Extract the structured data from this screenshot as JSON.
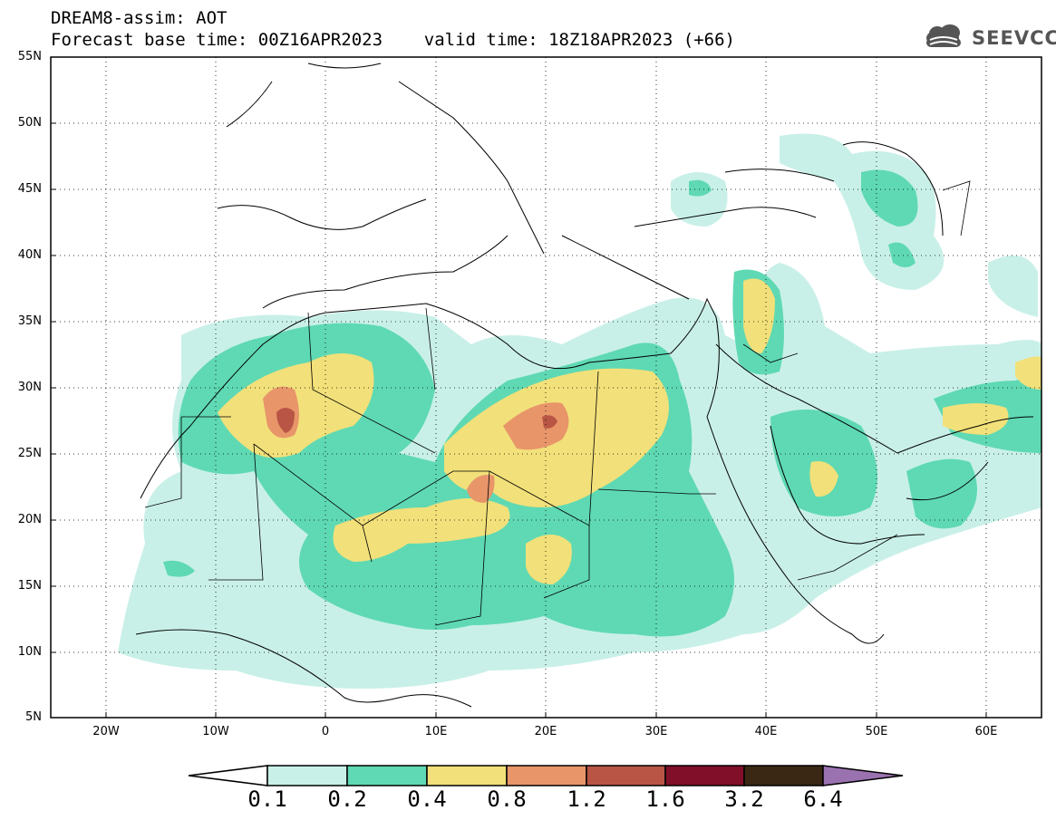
{
  "header": {
    "line1": "DREAM8-assim: AOT",
    "line2": "Forecast base time: 00Z16APR2023    valid time: 18Z18APR2023 (+66)"
  },
  "logo": {
    "text": "SEEVCCC",
    "icon": "cloud-icon"
  },
  "map": {
    "lon_range": [
      -25,
      65
    ],
    "lat_range": [
      5,
      55
    ],
    "lat_labels": [
      "55N",
      "50N",
      "45N",
      "40N",
      "35N",
      "30N",
      "25N",
      "20N",
      "15N",
      "10N",
      "5N"
    ],
    "lon_labels": [
      "20W",
      "10W",
      "0",
      "10E",
      "20E",
      "30E",
      "40E",
      "50E",
      "60E"
    ]
  },
  "colorbar": {
    "labels": [
      "0.1",
      "0.2",
      "0.4",
      "0.8",
      "1.2",
      "1.6",
      "3.2",
      "6.4"
    ],
    "colors": [
      "#ffffff",
      "#c9f0e8",
      "#5fd9b3",
      "#f2e07a",
      "#e8956a",
      "#b85545",
      "#820f2a",
      "#3a2814",
      "#9a72b0"
    ]
  }
}
